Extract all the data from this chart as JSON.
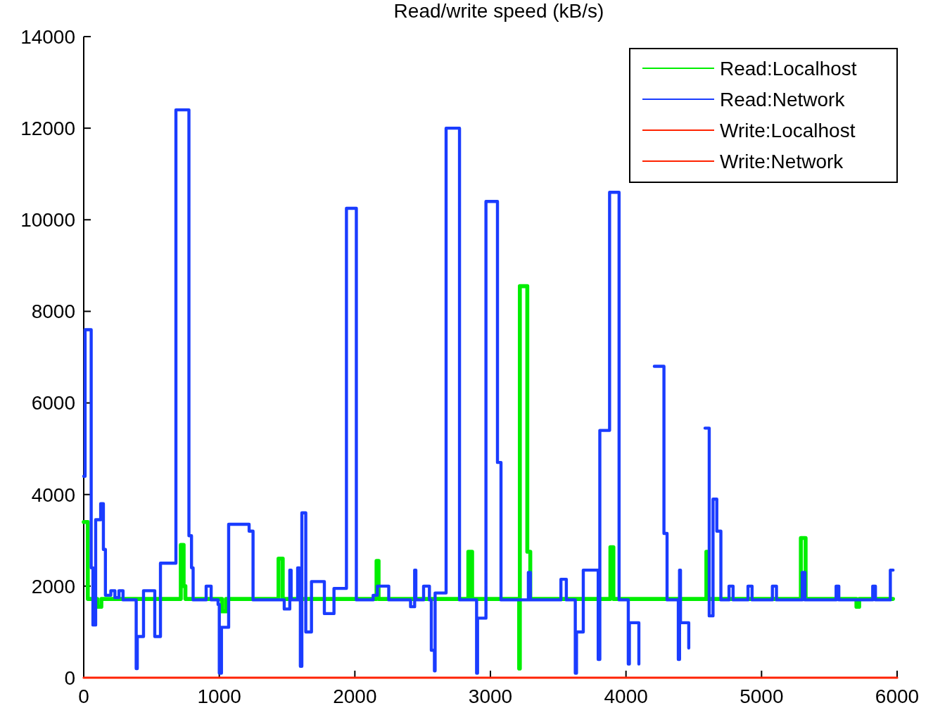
{
  "chart_data": {
    "type": "step",
    "title": "Read/write speed (kB/s)",
    "xlim": [
      0,
      6000
    ],
    "ylim": [
      0,
      14000
    ],
    "xticks": [
      0,
      1000,
      2000,
      3000,
      4000,
      5000,
      6000
    ],
    "yticks": [
      0,
      2000,
      4000,
      6000,
      8000,
      10000,
      12000,
      14000
    ],
    "grid": false,
    "legend": "top right",
    "line_style": "solid",
    "marker": "none",
    "series": [
      {
        "name": "Read:Localhost",
        "color": "#00ee00",
        "x": [
          0,
          30,
          100,
          130,
          716,
          737,
          750,
          1020,
          1050,
          1437,
          1468,
          2160,
          2175,
          2837,
          2865,
          3212,
          3217,
          3272,
          3294,
          3885,
          3907,
          4593,
          4605,
          5290,
          5325,
          5700,
          5720,
          5970
        ],
        "values": [
          3400,
          1720,
          1550,
          1720,
          2900,
          2000,
          1720,
          1450,
          1720,
          2600,
          1720,
          2550,
          1720,
          2750,
          1720,
          200,
          8550,
          2750,
          1720,
          2850,
          1720,
          2750,
          1720,
          3050,
          1720,
          1550,
          1720,
          1720
        ]
      },
      {
        "name": "Read:Network",
        "color": "#1a3cff",
        "x": [
          0,
          10,
          55,
          68,
          88,
          125,
          145,
          160,
          200,
          230,
          260,
          290,
          387,
          395,
          441,
          524,
          566,
          680,
          776,
          795,
          807,
          903,
          940,
          991,
          1000,
          1016,
          1069,
          1220,
          1249,
          1479,
          1520,
          1530,
          1578,
          1590,
          1598,
          1609,
          1638,
          1680,
          1775,
          1846,
          1938,
          2011,
          2135,
          2166,
          2250,
          2411,
          2441,
          2450,
          2507,
          2550,
          2564,
          2587,
          2592,
          2673,
          2772,
          2890,
          2898,
          2905,
          2967,
          3052,
          3078,
          3280,
          3295,
          3520,
          3560,
          3626,
          3635,
          3685,
          3795,
          3807,
          3879,
          3949,
          4017,
          4025,
          4095,
          4116,
          4209,
          4280,
          4303,
          4386,
          4395,
          4402,
          4463,
          4491,
          4583,
          4614,
          4642,
          4670,
          4700,
          4760,
          4790,
          4900,
          4930,
          5080,
          5110,
          5300,
          5320,
          5550,
          5570,
          5820,
          5840,
          5950,
          5970
        ],
        "values": [
          4400,
          7600,
          2400,
          1150,
          3450,
          3800,
          2800,
          1800,
          1900,
          1750,
          1900,
          1700,
          200,
          900,
          1900,
          900,
          2500,
          12400,
          3100,
          2400,
          1700,
          2000,
          1700,
          1600,
          100,
          1100,
          3350,
          3200,
          1700,
          1500,
          2350,
          1700,
          2400,
          1700,
          250,
          3600,
          1000,
          2100,
          1400,
          1950,
          10250,
          1700,
          1800,
          2000,
          1700,
          1550,
          2350,
          1700,
          2000,
          1700,
          600,
          150,
          1850,
          12000,
          1700,
          1700,
          100,
          1300,
          10400,
          4700,
          1700,
          2300,
          1700,
          2150,
          1700,
          100,
          1000,
          2350,
          400,
          5400,
          10600,
          1700,
          300,
          1200,
          300,
          null,
          6800,
          3150,
          1700,
          400,
          2350,
          1200,
          650,
          null,
          5450,
          1350,
          3900,
          3200,
          1700,
          2000,
          1700,
          2000,
          1700,
          2000,
          1700,
          2300,
          1700,
          2000,
          1700,
          2000,
          1700,
          2350,
          2350
        ]
      },
      {
        "name": "Write:Localhost",
        "color": "#ff2200",
        "x": [
          0,
          6000
        ],
        "values": [
          0,
          0
        ]
      },
      {
        "name": "Write:Network",
        "color": "#ff2200",
        "x": [
          0,
          6000
        ],
        "values": [
          0,
          0
        ]
      }
    ]
  }
}
